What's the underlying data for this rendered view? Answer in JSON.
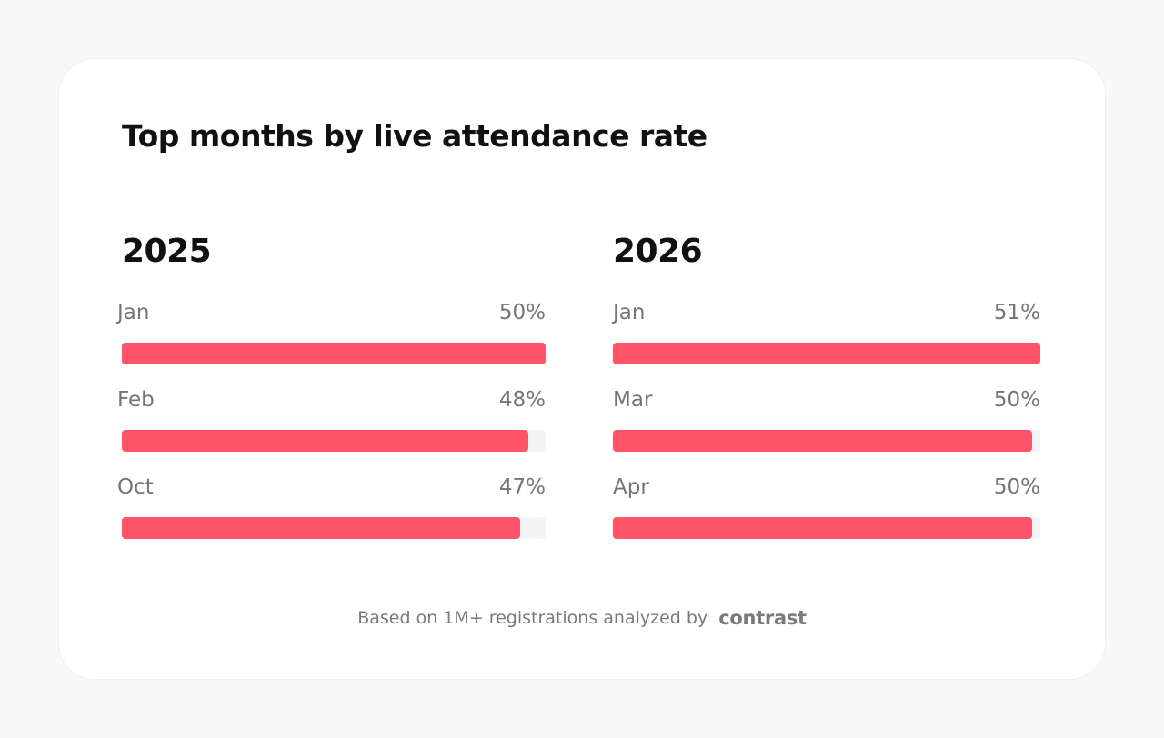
{
  "title": "Top months by live attendance rate",
  "footer": {
    "text": "Based on 1M+ registrations analyzed by",
    "logo_text": "contrast"
  },
  "colors": {
    "bar_fill": "#ff5468",
    "bar_track": "#f4f4f4",
    "text_muted": "#757575"
  },
  "chart_data": [
    {
      "type": "bar",
      "orientation": "horizontal",
      "title": "2025",
      "categories": [
        "Jan",
        "Feb",
        "Oct"
      ],
      "values": [
        50,
        48,
        47
      ],
      "value_labels": [
        "50%",
        "48%",
        "47%"
      ],
      "max": 50
    },
    {
      "type": "bar",
      "orientation": "horizontal",
      "title": "2026",
      "categories": [
        "Jan",
        "Mar",
        "Apr"
      ],
      "values": [
        51,
        50,
        50
      ],
      "value_labels": [
        "51%",
        "50%",
        "50%"
      ],
      "max": 51
    }
  ]
}
